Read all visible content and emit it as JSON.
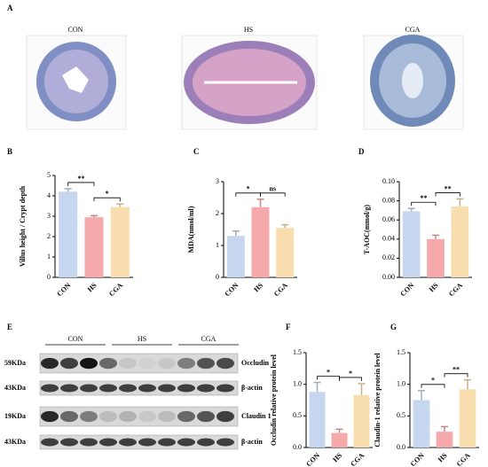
{
  "figure_a": {
    "panel": "A",
    "images": [
      "CON",
      "HS",
      "CGA"
    ]
  },
  "chart_data": [
    {
      "type": "bar",
      "panel": "B",
      "ylabel": "Villus height / Crypt depth",
      "categories": [
        "CON",
        "HS",
        "CGA"
      ],
      "values": [
        4.2,
        2.95,
        3.45
      ],
      "errors": [
        0.15,
        0.08,
        0.15
      ],
      "colors": [
        "#c7d6ef",
        "#f5a9ab",
        "#f8deaf"
      ],
      "ylim": [
        0,
        5
      ],
      "yticks": [
        0,
        1,
        2,
        3,
        4,
        5
      ],
      "significance": [
        {
          "label": "**",
          "pair": [
            "CON",
            "HS"
          ]
        },
        {
          "label": "*",
          "pair": [
            "HS",
            "CGA"
          ]
        }
      ]
    },
    {
      "type": "bar",
      "panel": "C",
      "ylabel": "MDA(nmol/ml)",
      "categories": [
        "CON",
        "HS",
        "CGA"
      ],
      "values": [
        1.3,
        2.2,
        1.55
      ],
      "errors": [
        0.15,
        0.25,
        0.1
      ],
      "colors": [
        "#c7d6ef",
        "#f5a9ab",
        "#f8deaf"
      ],
      "ylim": [
        0,
        3
      ],
      "yticks": [
        0,
        1,
        2,
        3
      ],
      "significance": [
        {
          "label": "*",
          "pair": [
            "CON",
            "HS"
          ]
        },
        {
          "label": "ns",
          "pair": [
            "HS",
            "CGA"
          ]
        }
      ]
    },
    {
      "type": "bar",
      "panel": "D",
      "ylabel": "T-AOC(mmol/g)",
      "categories": [
        "CON",
        "HS",
        "CGA"
      ],
      "values": [
        0.069,
        0.04,
        0.074
      ],
      "errors": [
        0.003,
        0.004,
        0.008
      ],
      "colors": [
        "#c7d6ef",
        "#f5a9ab",
        "#f8deaf"
      ],
      "ylim": [
        0,
        0.1
      ],
      "yticks": [
        {
          "value": 0,
          "label": "0.00"
        },
        {
          "value": 0.02,
          "label": "0.02"
        },
        {
          "value": 0.04,
          "label": "0.04"
        },
        {
          "value": 0.06,
          "label": "0.06"
        },
        {
          "value": 0.08,
          "label": "0.08"
        },
        {
          "value": 0.1,
          "label": "0.10"
        }
      ],
      "significance": [
        {
          "label": "**",
          "pair": [
            "CON",
            "HS"
          ]
        },
        {
          "label": "**",
          "pair": [
            "HS",
            "CGA"
          ]
        }
      ]
    },
    {
      "type": "bar",
      "panel": "F",
      "ylabel": "Occludin relative protein level",
      "categories": [
        "CON",
        "HS",
        "CGA"
      ],
      "values": [
        0.88,
        0.23,
        0.83
      ],
      "errors": [
        0.15,
        0.06,
        0.18
      ],
      "colors": [
        "#c7d6ef",
        "#f5a9ab",
        "#f8deaf"
      ],
      "ylim": [
        0,
        1.5
      ],
      "yticks": [
        {
          "value": 0,
          "label": "0.0"
        },
        {
          "value": 0.5,
          "label": "0.5"
        },
        {
          "value": 1,
          "label": "1.0"
        },
        {
          "value": 1.5,
          "label": "1.5"
        }
      ],
      "significance": [
        {
          "label": "*",
          "pair": [
            "CON",
            "HS"
          ]
        },
        {
          "label": "*",
          "pair": [
            "HS",
            "CGA"
          ]
        }
      ]
    },
    {
      "type": "bar",
      "panel": "G",
      "ylabel": "Claudin-1 relative protein level",
      "categories": [
        "CON",
        "HS",
        "CGA"
      ],
      "values": [
        0.75,
        0.25,
        0.92
      ],
      "errors": [
        0.15,
        0.08,
        0.15
      ],
      "colors": [
        "#c7d6ef",
        "#f5a9ab",
        "#f8deaf"
      ],
      "ylim": [
        0,
        1.5
      ],
      "yticks": [
        {
          "value": 0,
          "label": "0.0"
        },
        {
          "value": 0.5,
          "label": "0.5"
        },
        {
          "value": 1,
          "label": "1.0"
        },
        {
          "value": 1.5,
          "label": "1.5"
        }
      ],
      "significance": [
        {
          "label": "*",
          "pair": [
            "CON",
            "HS"
          ]
        },
        {
          "label": "**",
          "pair": [
            "HS",
            "CGA"
          ]
        }
      ]
    }
  ],
  "blot": {
    "panel": "E",
    "groups": [
      "CON",
      "HS",
      "CGA"
    ],
    "rows": [
      {
        "size": "59KDa",
        "protein": "Occludin"
      },
      {
        "size": "43KDa",
        "protein": "β-actin"
      },
      {
        "size": "19KDa",
        "protein": "Claudin 1"
      },
      {
        "size": "43KDa",
        "protein": "β-actin"
      }
    ]
  }
}
